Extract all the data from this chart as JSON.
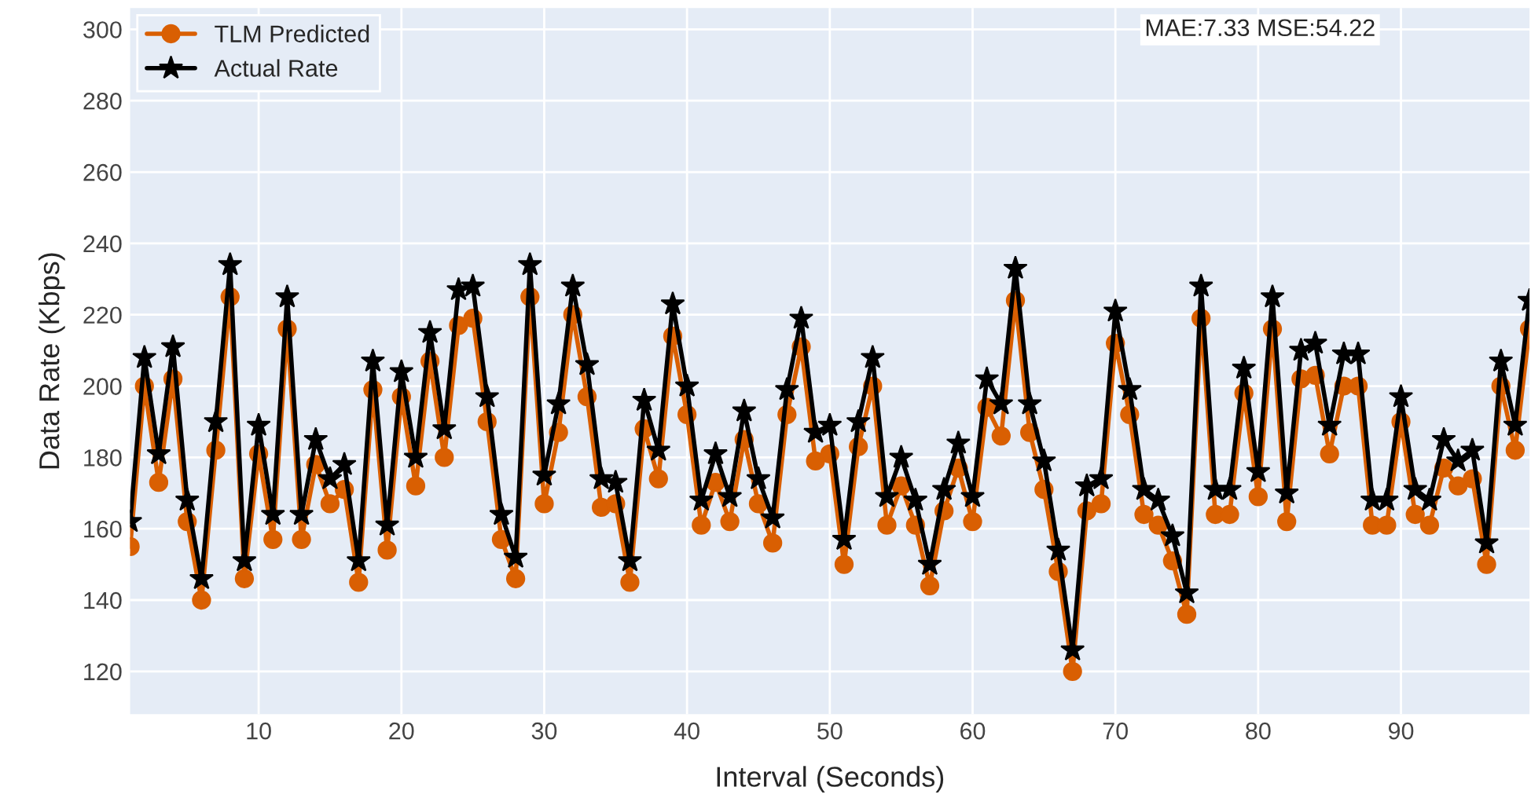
{
  "chart_data": {
    "type": "line",
    "xlabel": "Interval (Seconds)",
    "ylabel": "Data Rate (Kbps)",
    "x": [
      1,
      2,
      3,
      4,
      5,
      6,
      7,
      8,
      9,
      10,
      11,
      12,
      13,
      14,
      15,
      16,
      17,
      18,
      19,
      20,
      21,
      22,
      23,
      24,
      25,
      26,
      27,
      28,
      29,
      30,
      31,
      32,
      33,
      34,
      35,
      36,
      37,
      38,
      39,
      40,
      41,
      42,
      43,
      44,
      45,
      46,
      47,
      48,
      49,
      50,
      51,
      52,
      53,
      54,
      55,
      56,
      57,
      58,
      59,
      60,
      61,
      62,
      63,
      64,
      65,
      66,
      67,
      68,
      69,
      70,
      71,
      72,
      73,
      74,
      75,
      76,
      77,
      78,
      79,
      80,
      81,
      82,
      83,
      84,
      85,
      86,
      87,
      88,
      89,
      90,
      91,
      92,
      93,
      94,
      95,
      96,
      97,
      98,
      99
    ],
    "series": [
      {
        "name": "TLM Predicted",
        "color": "#d95f02",
        "marker": "circle",
        "values": [
          155,
          200,
          173,
          202,
          162,
          140,
          182,
          225,
          146,
          181,
          157,
          216,
          157,
          178,
          167,
          171,
          145,
          199,
          154,
          197,
          172,
          207,
          180,
          217,
          219,
          190,
          157,
          146,
          225,
          167,
          187,
          220,
          197,
          166,
          167,
          145,
          188,
          174,
          214,
          192,
          161,
          173,
          162,
          185,
          167,
          156,
          192,
          211,
          179,
          181,
          150,
          183,
          200,
          161,
          172,
          161,
          144,
          165,
          177,
          162,
          194,
          186,
          224,
          187,
          171,
          148,
          120,
          165,
          167,
          212,
          192,
          164,
          161,
          151,
          136,
          219,
          164,
          164,
          198,
          169,
          216,
          162,
          202,
          203,
          181,
          200,
          200,
          161,
          161,
          190,
          164,
          161,
          177,
          172,
          174,
          150,
          200,
          182,
          216
        ]
      },
      {
        "name": "Actual Rate",
        "color": "#000000",
        "marker": "star",
        "values": [
          162,
          208,
          181,
          211,
          168,
          146,
          190,
          234,
          151,
          189,
          164,
          225,
          164,
          185,
          174,
          178,
          151,
          207,
          161,
          204,
          180,
          215,
          188,
          227,
          228,
          197,
          164,
          152,
          234,
          175,
          195,
          228,
          206,
          174,
          173,
          151,
          196,
          182,
          223,
          200,
          168,
          181,
          169,
          193,
          174,
          163,
          199,
          219,
          187,
          189,
          157,
          190,
          208,
          169,
          180,
          168,
          150,
          171,
          184,
          169,
          202,
          195,
          233,
          195,
          179,
          154,
          126,
          172,
          174,
          221,
          199,
          171,
          168,
          158,
          142,
          228,
          171,
          171,
          205,
          176,
          225,
          170,
          210,
          212,
          189,
          209,
          209,
          168,
          168,
          197,
          171,
          168,
          185,
          179,
          182,
          156,
          207,
          189,
          224
        ]
      }
    ],
    "xlim": [
      1,
      99
    ],
    "xticks": [
      10,
      20,
      30,
      40,
      50,
      60,
      70,
      80,
      90
    ],
    "ylim": [
      108,
      306
    ],
    "yticks": [
      120,
      140,
      160,
      180,
      200,
      220,
      240,
      260,
      280,
      300
    ],
    "grid": true,
    "legend": "top left",
    "line_style": "solid",
    "annotations": [
      "MAE:7.33 MSE:54.22"
    ]
  }
}
